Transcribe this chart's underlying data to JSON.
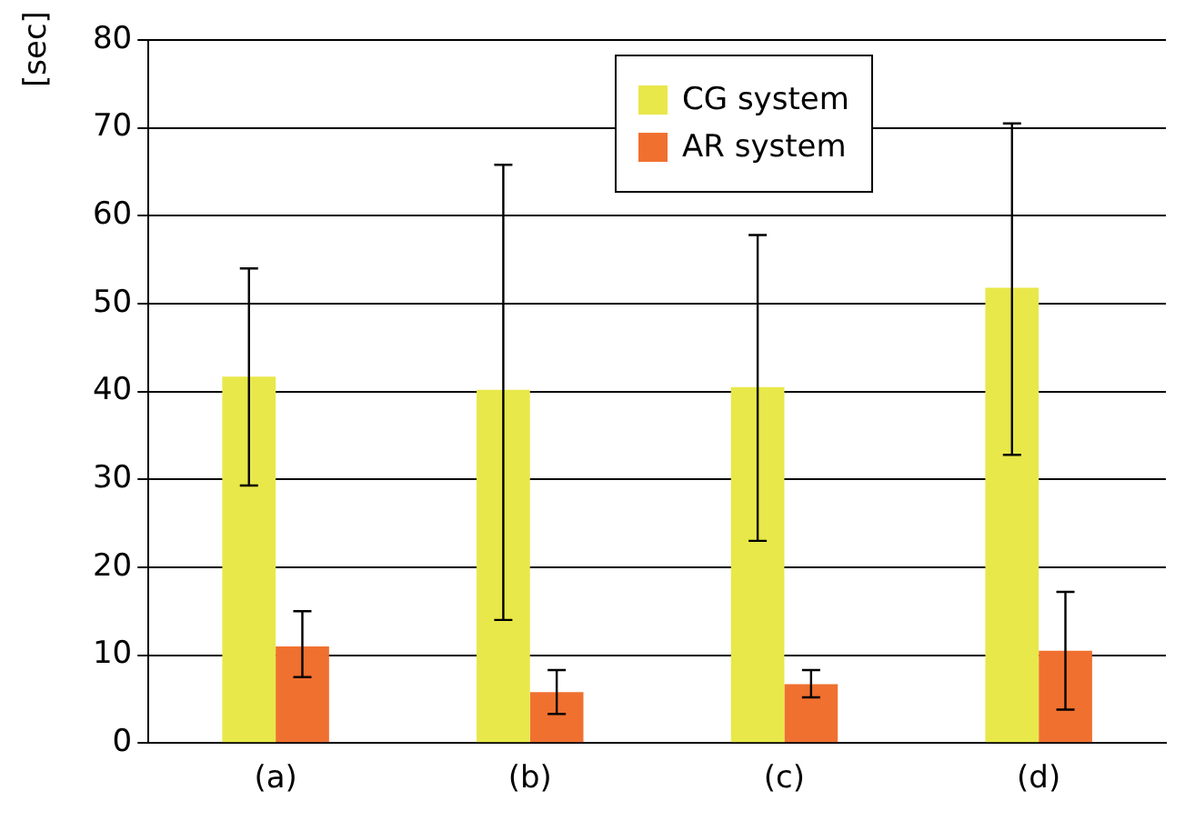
{
  "chart_data": {
    "type": "bar",
    "ylabel": "[sec]",
    "categories": [
      "(a)",
      "(b)",
      "(c)",
      "(d)"
    ],
    "series": [
      {
        "name": "CG system",
        "color": "#e8e84a",
        "values": [
          41.7,
          40.2,
          40.5,
          51.8
        ],
        "errors": [
          [
            29.3,
            54
          ],
          [
            14,
            65.8
          ],
          [
            23,
            57.8
          ],
          [
            32.8,
            70.5
          ]
        ]
      },
      {
        "name": "AR system",
        "color": "#f07030",
        "values": [
          11,
          5.8,
          6.7,
          10.5
        ],
        "errors": [
          [
            7.5,
            15
          ],
          [
            3.3,
            8.3
          ],
          [
            5.2,
            8.3
          ],
          [
            3.8,
            17.2
          ]
        ]
      }
    ],
    "ylim": [
      0,
      80
    ],
    "yticks": [
      0,
      10,
      20,
      30,
      40,
      50,
      60,
      70,
      80
    ],
    "grid": "y",
    "legend": "top"
  }
}
